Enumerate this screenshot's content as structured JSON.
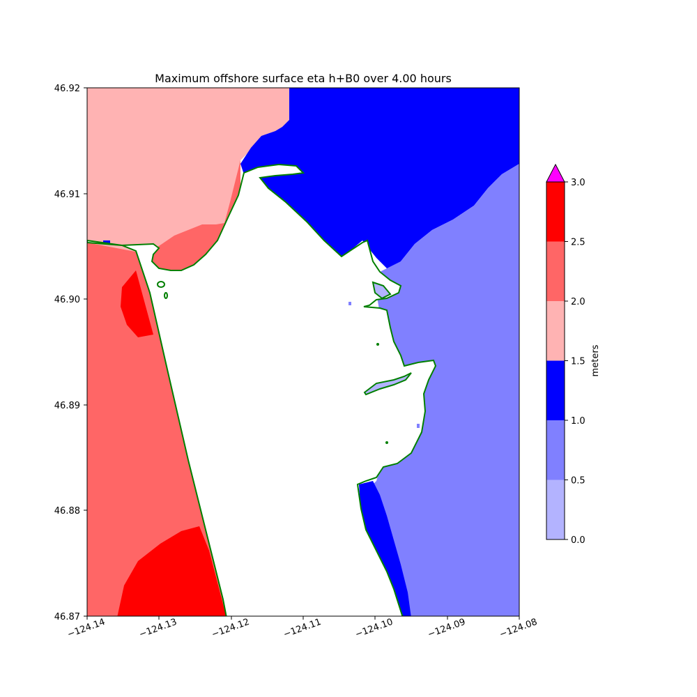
{
  "title": "Maximum offshore surface eta h+B0 over 4.00 hours",
  "x_ticks": [
    "−124.14",
    "−124.13",
    "−124.12",
    "−124.11",
    "−124.10",
    "−124.09",
    "−124.08"
  ],
  "y_ticks": [
    "46.87",
    "46.88",
    "46.89",
    "46.90",
    "46.91",
    "46.92"
  ],
  "colorbar": {
    "label": "meters",
    "ticks": [
      "0.0",
      "0.5",
      "1.0",
      "1.5",
      "2.0",
      "2.5",
      "3.0"
    ],
    "levels": [
      0.0,
      0.5,
      1.0,
      1.5,
      2.0,
      2.5,
      3.0
    ],
    "colors": [
      "#b3b3ff",
      "#8080ff",
      "#0000ff",
      "#ffb3b3",
      "#ff6666",
      "#ff0000"
    ],
    "over_color": "#ff00ff",
    "extend": "max"
  },
  "map": {
    "lon_range": [
      -124.14,
      -124.08
    ],
    "lat_range": [
      46.87,
      46.92
    ],
    "land_color": "#ffffff",
    "shoreline_color": "#007f00"
  }
}
